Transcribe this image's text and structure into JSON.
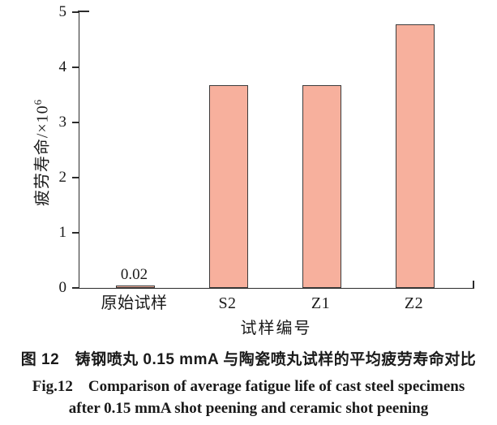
{
  "figure": {
    "caption_zh": "图 12　铸钢喷丸 0.15 mmA 与陶瓷喷丸试样的平均疲劳寿命对比",
    "caption_en_line1": "Fig.12　Comparison of average fatigue life of cast steel specimens",
    "caption_en_line2": "after 0.15 mmA shot peening and ceramic shot peening"
  },
  "chart_data": {
    "type": "bar",
    "title": "",
    "categories": [
      "原始试样",
      "S2",
      "Z1",
      "Z2"
    ],
    "values": [
      0.02,
      3.65,
      3.65,
      4.75
    ],
    "bar_labels": [
      "0.02",
      "",
      "",
      ""
    ],
    "xlabel": "试样编号",
    "ylabel": "疲劳寿命/×10⁶",
    "ylabel_base": "疲劳寿命/×10",
    "ylabel_exponent": "6",
    "ylim": [
      0,
      5
    ],
    "yticks": [
      0,
      1,
      2,
      3,
      4,
      5
    ],
    "grid": false,
    "legend": "none",
    "bar_fill": "#F7B09D",
    "bar_border": "#3C3C3C",
    "axis_color": "#2B2B2B",
    "text_color": "#1A1A1A"
  }
}
